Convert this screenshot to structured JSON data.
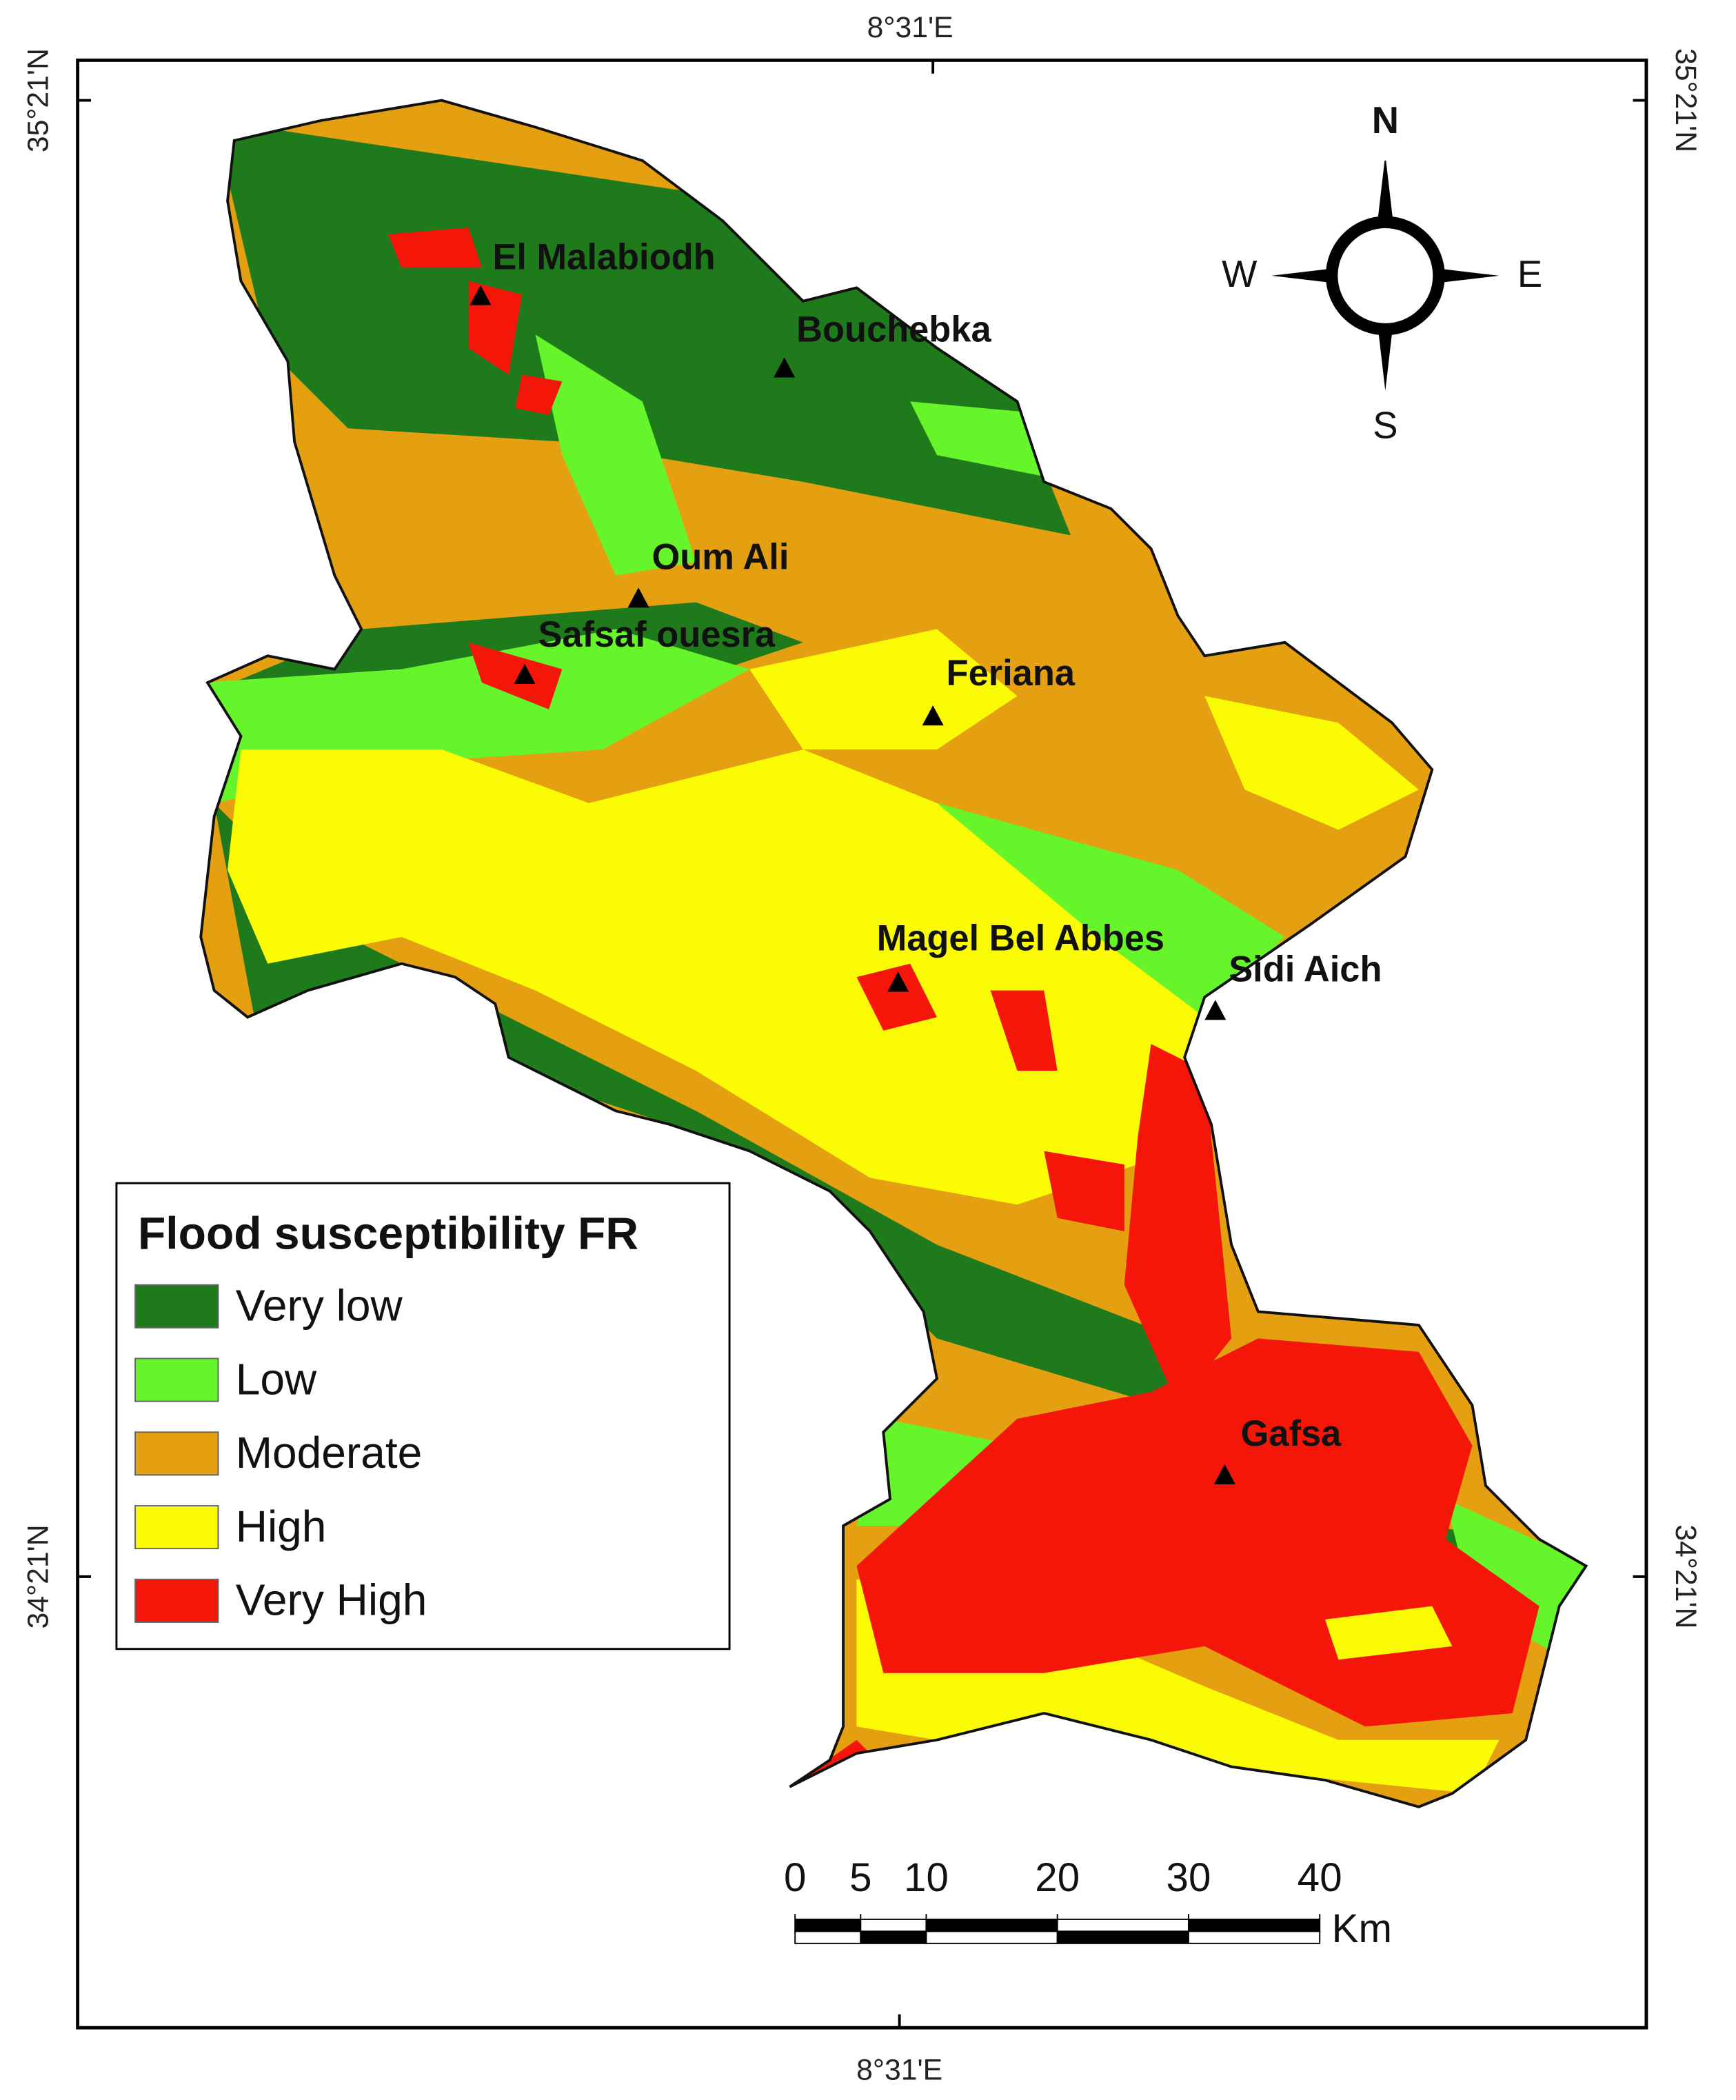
{
  "coordinates": {
    "top": "8°31'E",
    "bottom": "8°31'E",
    "left_top": "35°21'N",
    "right_top": "35°21'N",
    "left_bottom": "34°21'N",
    "right_bottom": "34°21'N"
  },
  "places": [
    {
      "name": "El Malabiodh"
    },
    {
      "name": "Bouchebka"
    },
    {
      "name": "Oum Ali"
    },
    {
      "name": "Safsaf ouesra"
    },
    {
      "name": "Feriana"
    },
    {
      "name": "Magel Bel Abbes"
    },
    {
      "name": "Sidi Aich"
    },
    {
      "name": "Gafsa"
    }
  ],
  "compass": {
    "n": "N",
    "s": "S",
    "e": "E",
    "w": "W"
  },
  "legend": {
    "title": "Flood susceptibility FR",
    "items": [
      {
        "label": "Very low",
        "color": "#1f7a1c"
      },
      {
        "label": "Low",
        "color": "#66f52a"
      },
      {
        "label": "Moderate",
        "color": "#e5a012"
      },
      {
        "label": "High",
        "color": "#fbfb05"
      },
      {
        "label": "Very High",
        "color": "#f5160a"
      }
    ]
  },
  "scale_bar": {
    "ticks": [
      0,
      5,
      10,
      20,
      30,
      40
    ],
    "unit": "Km"
  }
}
